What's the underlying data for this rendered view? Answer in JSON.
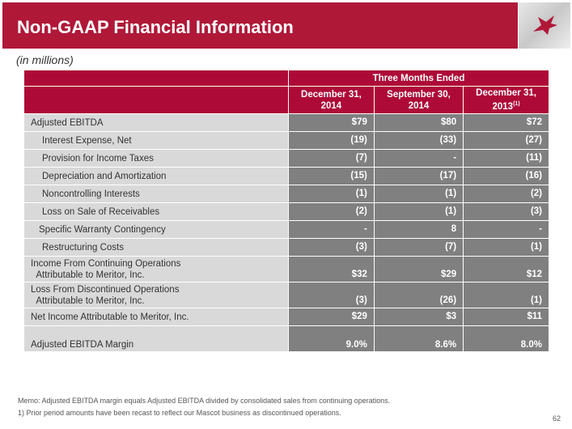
{
  "title": "Non-GAAP Financial Information",
  "subtitle": "(in millions)",
  "table": {
    "group_header": "Three Months Ended",
    "columns": [
      {
        "line1": "December 31,",
        "line2": "2014",
        "sup": ""
      },
      {
        "line1": "September 30,",
        "line2": "2014",
        "sup": ""
      },
      {
        "line1": "December 31,",
        "line2": "2013",
        "sup": "(1)"
      }
    ],
    "rows": [
      {
        "label": "Adjusted EBITDA",
        "values": [
          "$79",
          "$80",
          "$72"
        ]
      },
      {
        "label": "Interest Expense, Net",
        "values": [
          "(19)",
          "(33)",
          "(27)"
        ]
      },
      {
        "label": "Provision for Income Taxes",
        "values": [
          "(7)",
          "-",
          "(11)"
        ]
      },
      {
        "label": "Depreciation and Amortization",
        "values": [
          "(15)",
          "(17)",
          "(16)"
        ]
      },
      {
        "label": "Noncontrolling Interests",
        "values": [
          "(1)",
          "(1)",
          "(2)"
        ]
      },
      {
        "label": "Loss on Sale of Receivables",
        "values": [
          "(2)",
          "(1)",
          "(3)"
        ]
      },
      {
        "label": "Specific Warranty Contingency",
        "values": [
          "-",
          "8",
          "-"
        ]
      },
      {
        "label": "Restructuring Costs",
        "values": [
          "(3)",
          "(7)",
          "(1)"
        ]
      },
      {
        "label": "Income From Continuing Operations",
        "label2": "Attributable to Meritor, Inc.",
        "values": [
          "$32",
          "$29",
          "$12"
        ]
      },
      {
        "label": "Loss From Discontinued Operations",
        "label2": "Attributable to Meritor, Inc.",
        "values": [
          "(3)",
          "(26)",
          "(1)"
        ]
      },
      {
        "label": "Net Income Attributable to Meritor, Inc.",
        "values": [
          "$29",
          "$3",
          "$11"
        ]
      },
      {
        "label": "Adjusted EBITDA Margin",
        "values": [
          "9.0%",
          "8.6%",
          "8.0%"
        ]
      }
    ]
  },
  "memo": "Memo: Adjusted EBITDA margin equals Adjusted EBITDA divided by consolidated sales from continuing operations.",
  "footnote": "1)  Prior period amounts have been recast to reflect our Mascot business as discontinued operations.",
  "page_number": "62"
}
